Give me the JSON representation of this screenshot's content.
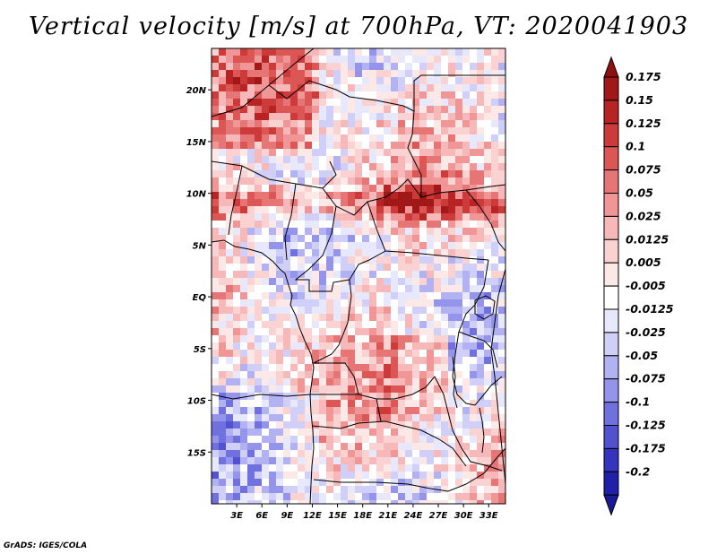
{
  "title": "Vertical velocity [m/s] at 700hPa, VT: 2020041903",
  "credit": "GrADS: IGES/COLA",
  "map": {
    "variable": "Vertical velocity",
    "units": "m/s",
    "level": "700hPa",
    "valid_time": "2020041903",
    "lon_range": [
      0,
      35
    ],
    "lat_range": [
      -20,
      24
    ],
    "lat_ticks": [
      {
        "value": 20,
        "label": "20N"
      },
      {
        "value": 15,
        "label": "15N"
      },
      {
        "value": 10,
        "label": "10N"
      },
      {
        "value": 5,
        "label": "5N"
      },
      {
        "value": 0,
        "label": "EQ"
      },
      {
        "value": -5,
        "label": "5S"
      },
      {
        "value": -10,
        "label": "10S"
      },
      {
        "value": -15,
        "label": "15S"
      }
    ],
    "lon_ticks": [
      {
        "value": 3,
        "label": "3E"
      },
      {
        "value": 6,
        "label": "6E"
      },
      {
        "value": 9,
        "label": "9E"
      },
      {
        "value": 12,
        "label": "12E"
      },
      {
        "value": 15,
        "label": "15E"
      },
      {
        "value": 18,
        "label": "18E"
      },
      {
        "value": 21,
        "label": "21E"
      },
      {
        "value": 24,
        "label": "24E"
      },
      {
        "value": 27,
        "label": "27E"
      },
      {
        "value": 30,
        "label": "30E"
      },
      {
        "value": 33,
        "label": "33E"
      }
    ]
  },
  "colorbar": {
    "levels": [
      {
        "label": "0.175",
        "color": "#a01818"
      },
      {
        "label": "0.15",
        "color": "#b82424"
      },
      {
        "label": "0.125",
        "color": "#cc3a3a"
      },
      {
        "label": "0.1",
        "color": "#dc5656"
      },
      {
        "label": "0.075",
        "color": "#e67676"
      },
      {
        "label": "0.05",
        "color": "#f09696"
      },
      {
        "label": "0.025",
        "color": "#f6b8b8"
      },
      {
        "label": "0.0125",
        "color": "#fad2d2"
      },
      {
        "label": "0.005",
        "color": "#fde8e8"
      },
      {
        "label": "-0.005",
        "color": "#ffffff"
      },
      {
        "label": "-0.0125",
        "color": "#e8e8fd"
      },
      {
        "label": "-0.025",
        "color": "#cfcff8"
      },
      {
        "label": "-0.05",
        "color": "#b2b2f2"
      },
      {
        "label": "-0.075",
        "color": "#9494ea"
      },
      {
        "label": "-0.1",
        "color": "#7070de"
      },
      {
        "label": "-0.125",
        "color": "#5252d0"
      },
      {
        "label": "-0.175",
        "color": "#3434be"
      },
      {
        "label": "-0.2",
        "color": "#2020a8"
      }
    ],
    "top_arrow_color": "#8e1010",
    "bottom_arrow_color": "#1a1a96"
  }
}
